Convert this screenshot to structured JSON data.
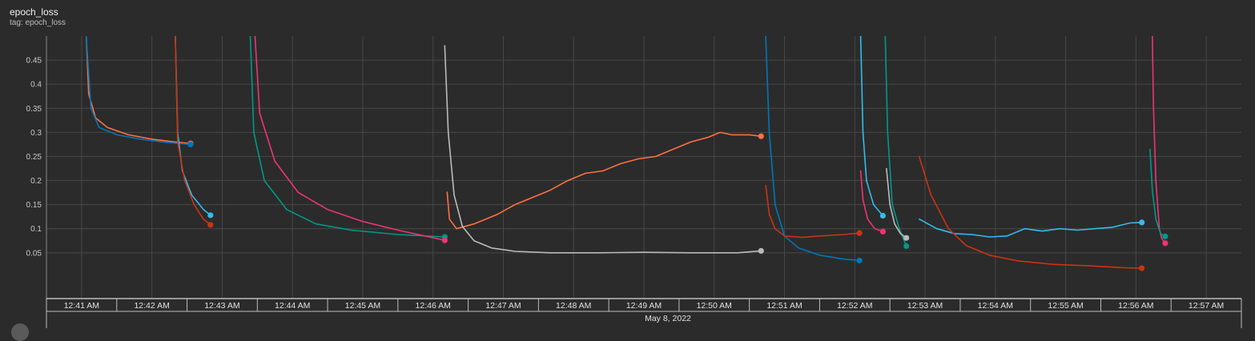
{
  "card": {
    "title": "epoch_loss",
    "tag": "tag: epoch_loss"
  },
  "chart_data": {
    "type": "line",
    "title": "epoch_loss",
    "xlabel": "May 8, 2022",
    "ylabel": "",
    "ylim": [
      -0.045,
      0.5
    ],
    "xlim": [
      "12:40:30",
      "12:57:30"
    ],
    "grid": true,
    "yticks": [
      0.05,
      0.1,
      0.15,
      0.2,
      0.25,
      0.3,
      0.35,
      0.4,
      0.45
    ],
    "ytick_labels": [
      "0.05",
      "0.1",
      "0.15",
      "0.2",
      "0.25",
      "0.3",
      "0.35",
      "0.4",
      "0.45"
    ],
    "xticks": [
      "12:41",
      "12:42",
      "12:43",
      "12:44",
      "12:45",
      "12:46",
      "12:47",
      "12:48",
      "12:49",
      "12:50",
      "12:51",
      "12:52",
      "12:53",
      "12:54",
      "12:55",
      "12:56",
      "12:57"
    ],
    "xtick_labels": [
      "12:41 AM",
      "12:42 AM",
      "12:43 AM",
      "12:44 AM",
      "12:45 AM",
      "12:46 AM",
      "12:47 AM",
      "12:48 AM",
      "12:49 AM",
      "12:50 AM",
      "12:51 AM",
      "12:52 AM",
      "12:53 AM",
      "12:54 AM",
      "12:55 AM",
      "12:56 AM",
      "12:57 AM"
    ],
    "date_label": "May 8, 2022",
    "series": [
      {
        "color": "#ff7043",
        "values": [
          [
            "12:41:04",
            0.5
          ],
          [
            "12:41:06",
            0.38
          ],
          [
            "12:41:12",
            0.33
          ],
          [
            "12:41:22",
            0.31
          ],
          [
            "12:41:40",
            0.295
          ],
          [
            "12:42:00",
            0.286
          ],
          [
            "12:42:20",
            0.28
          ],
          [
            "12:42:33",
            0.277
          ]
        ]
      },
      {
        "color": "#0077bb",
        "values": [
          [
            "12:41:04",
            0.5
          ],
          [
            "12:41:08",
            0.35
          ],
          [
            "12:41:15",
            0.31
          ],
          [
            "12:41:30",
            0.295
          ],
          [
            "12:41:50",
            0.286
          ],
          [
            "12:42:10",
            0.28
          ],
          [
            "12:42:33",
            0.275
          ]
        ]
      },
      {
        "color": "#33bbee",
        "values": [
          [
            "12:42:20",
            0.5
          ],
          [
            "12:42:22",
            0.3
          ],
          [
            "12:42:26",
            0.22
          ],
          [
            "12:42:34",
            0.17
          ],
          [
            "12:42:44",
            0.14
          ],
          [
            "12:42:50",
            0.128
          ]
        ]
      },
      {
        "color": "#cc3311",
        "values": [
          [
            "12:42:20",
            0.5
          ],
          [
            "12:42:22",
            0.28
          ],
          [
            "12:42:28",
            0.2
          ],
          [
            "12:42:36",
            0.15
          ],
          [
            "12:42:44",
            0.12
          ],
          [
            "12:42:50",
            0.108
          ]
        ]
      },
      {
        "color": "#009988",
        "values": [
          [
            "12:43:24",
            0.5
          ],
          [
            "12:43:27",
            0.3
          ],
          [
            "12:43:36",
            0.2
          ],
          [
            "12:43:55",
            0.14
          ],
          [
            "12:44:20",
            0.11
          ],
          [
            "12:44:50",
            0.097
          ],
          [
            "12:45:30",
            0.088
          ],
          [
            "12:46:10",
            0.083
          ]
        ]
      },
      {
        "color": "#ee3377",
        "values": [
          [
            "12:43:28",
            0.5
          ],
          [
            "12:43:32",
            0.34
          ],
          [
            "12:43:45",
            0.24
          ],
          [
            "12:44:05",
            0.175
          ],
          [
            "12:44:30",
            0.14
          ],
          [
            "12:45:00",
            0.115
          ],
          [
            "12:45:30",
            0.097
          ],
          [
            "12:46:10",
            0.076
          ]
        ]
      },
      {
        "color": "#ff7043",
        "values": [
          [
            "12:46:12",
            0.176
          ],
          [
            "12:46:14",
            0.12
          ],
          [
            "12:46:20",
            0.1
          ],
          [
            "12:46:35",
            0.11
          ],
          [
            "12:46:55",
            0.13
          ],
          [
            "12:47:10",
            0.15
          ],
          [
            "12:47:25",
            0.165
          ],
          [
            "12:47:40",
            0.18
          ],
          [
            "12:47:55",
            0.2
          ],
          [
            "12:48:10",
            0.215
          ],
          [
            "12:48:25",
            0.22
          ],
          [
            "12:48:40",
            0.235
          ],
          [
            "12:48:55",
            0.245
          ],
          [
            "12:49:10",
            0.25
          ],
          [
            "12:49:25",
            0.265
          ],
          [
            "12:49:40",
            0.28
          ],
          [
            "12:49:55",
            0.29
          ],
          [
            "12:50:05",
            0.3
          ],
          [
            "12:50:15",
            0.295
          ],
          [
            "12:50:30",
            0.295
          ],
          [
            "12:50:40",
            0.292
          ]
        ]
      },
      {
        "color": "#bbbbbb",
        "values": [
          [
            "12:46:10",
            0.48
          ],
          [
            "12:46:13",
            0.3
          ],
          [
            "12:46:18",
            0.17
          ],
          [
            "12:46:25",
            0.105
          ],
          [
            "12:46:35",
            0.075
          ],
          [
            "12:46:50",
            0.06
          ],
          [
            "12:47:10",
            0.053
          ],
          [
            "12:47:40",
            0.05
          ],
          [
            "12:48:20",
            0.05
          ],
          [
            "12:49:00",
            0.051
          ],
          [
            "12:49:40",
            0.05
          ],
          [
            "12:50:20",
            0.05
          ],
          [
            "12:50:40",
            0.054
          ]
        ]
      },
      {
        "color": "#0077bb",
        "values": [
          [
            "12:50:44",
            0.5
          ],
          [
            "12:50:47",
            0.3
          ],
          [
            "12:50:52",
            0.15
          ],
          [
            "12:51:00",
            0.085
          ],
          [
            "12:51:12",
            0.06
          ],
          [
            "12:51:30",
            0.045
          ],
          [
            "12:51:50",
            0.037
          ],
          [
            "12:52:04",
            0.034
          ]
        ]
      },
      {
        "color": "#cc3311",
        "values": [
          [
            "12:50:44",
            0.19
          ],
          [
            "12:50:47",
            0.13
          ],
          [
            "12:50:52",
            0.1
          ],
          [
            "12:51:00",
            0.085
          ],
          [
            "12:51:15",
            0.082
          ],
          [
            "12:51:30",
            0.085
          ],
          [
            "12:51:50",
            0.088
          ],
          [
            "12:52:04",
            0.091
          ]
        ]
      },
      {
        "color": "#33bbee",
        "values": [
          [
            "12:52:05",
            0.5
          ],
          [
            "12:52:07",
            0.3
          ],
          [
            "12:52:10",
            0.2
          ],
          [
            "12:52:16",
            0.15
          ],
          [
            "12:52:24",
            0.127
          ]
        ]
      },
      {
        "color": "#ee3377",
        "values": [
          [
            "12:52:05",
            0.22
          ],
          [
            "12:52:07",
            0.16
          ],
          [
            "12:52:11",
            0.12
          ],
          [
            "12:52:17",
            0.1
          ],
          [
            "12:52:24",
            0.094
          ]
        ]
      },
      {
        "color": "#009988",
        "values": [
          [
            "12:52:26",
            0.5
          ],
          [
            "12:52:28",
            0.3
          ],
          [
            "12:52:32",
            0.15
          ],
          [
            "12:52:38",
            0.1
          ],
          [
            "12:52:44",
            0.064
          ]
        ]
      },
      {
        "color": "#bbbbbb",
        "values": [
          [
            "12:52:27",
            0.225
          ],
          [
            "12:52:30",
            0.15
          ],
          [
            "12:52:34",
            0.11
          ],
          [
            "12:52:39",
            0.09
          ],
          [
            "12:52:44",
            0.081
          ]
        ]
      },
      {
        "color": "#33bbee",
        "values": [
          [
            "12:52:55",
            0.12
          ],
          [
            "12:53:10",
            0.1
          ],
          [
            "12:53:25",
            0.09
          ],
          [
            "12:53:40",
            0.088
          ],
          [
            "12:53:55",
            0.083
          ],
          [
            "12:54:10",
            0.085
          ],
          [
            "12:54:25",
            0.1
          ],
          [
            "12:54:40",
            0.095
          ],
          [
            "12:54:55",
            0.1
          ],
          [
            "12:55:10",
            0.097
          ],
          [
            "12:55:25",
            0.1
          ],
          [
            "12:55:40",
            0.103
          ],
          [
            "12:55:55",
            0.112
          ],
          [
            "12:56:05",
            0.113
          ]
        ]
      },
      {
        "color": "#cc3311",
        "values": [
          [
            "12:52:55",
            0.25
          ],
          [
            "12:53:05",
            0.17
          ],
          [
            "12:53:20",
            0.1
          ],
          [
            "12:53:35",
            0.065
          ],
          [
            "12:53:55",
            0.045
          ],
          [
            "12:54:20",
            0.033
          ],
          [
            "12:54:50",
            0.026
          ],
          [
            "12:55:20",
            0.023
          ],
          [
            "12:55:50",
            0.019
          ],
          [
            "12:56:05",
            0.018
          ]
        ]
      },
      {
        "color": "#ee3377",
        "values": [
          [
            "12:56:14",
            0.5
          ],
          [
            "12:56:15",
            0.35
          ],
          [
            "12:56:17",
            0.2
          ],
          [
            "12:56:20",
            0.1
          ],
          [
            "12:56:22",
            0.08
          ],
          [
            "12:56:25",
            0.07
          ]
        ]
      },
      {
        "color": "#009988",
        "values": [
          [
            "12:56:12",
            0.265
          ],
          [
            "12:56:14",
            0.18
          ],
          [
            "12:56:17",
            0.12
          ],
          [
            "12:56:21",
            0.09
          ],
          [
            "12:56:25",
            0.084
          ]
        ]
      }
    ]
  }
}
